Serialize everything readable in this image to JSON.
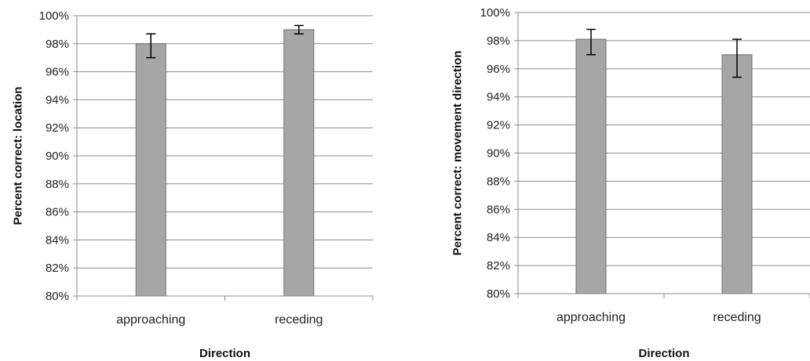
{
  "chart_data": [
    {
      "type": "bar",
      "categories": [
        "approaching",
        "receding"
      ],
      "values": [
        98.0,
        99.0
      ],
      "error_low": [
        97.0,
        98.7
      ],
      "error_high": [
        98.7,
        99.3
      ],
      "ylim": [
        80,
        100
      ],
      "yticks": [
        "80%",
        "82%",
        "84%",
        "86%",
        "88%",
        "90%",
        "92%",
        "94%",
        "96%",
        "98%",
        "100%"
      ],
      "xlabel": "Direction",
      "ylabel": "Percent correct: location",
      "grid": true,
      "bar_color": "#a6a6a6"
    },
    {
      "type": "bar",
      "categories": [
        "approaching",
        "receding"
      ],
      "values": [
        98.1,
        97.0
      ],
      "error_low": [
        97.0,
        95.4
      ],
      "error_high": [
        98.8,
        98.1
      ],
      "ylim": [
        80,
        100
      ],
      "yticks": [
        "80%",
        "82%",
        "84%",
        "86%",
        "88%",
        "90%",
        "92%",
        "94%",
        "96%",
        "98%",
        "100%"
      ],
      "xlabel": "Direction",
      "ylabel": "Percent correct: movement direction",
      "grid": true,
      "bar_color": "#a6a6a6"
    }
  ]
}
